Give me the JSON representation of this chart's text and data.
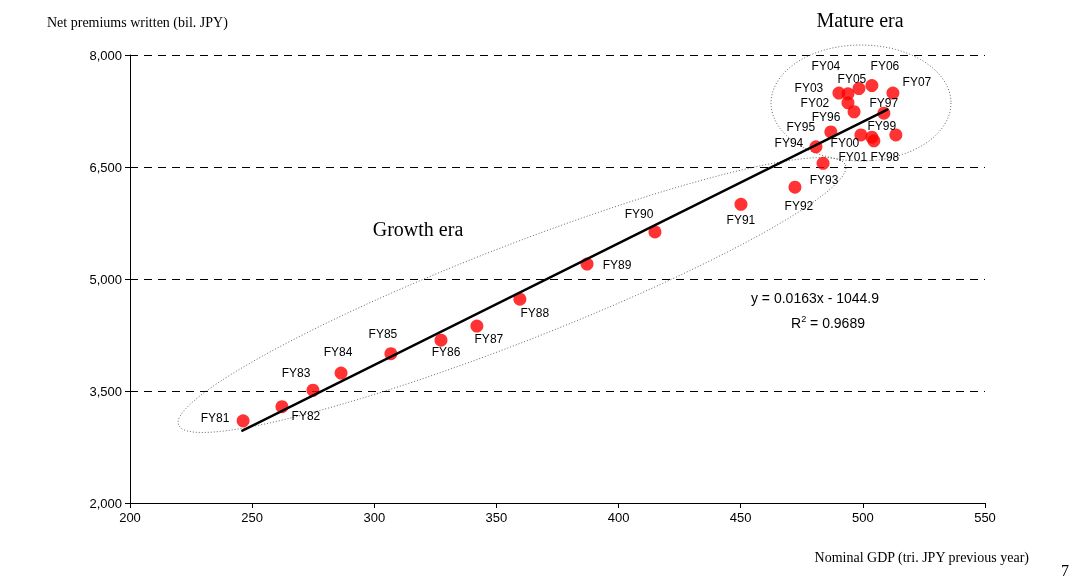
{
  "chart_data": {
    "type": "scatter",
    "xlabel": "Nominal GDP (tri. JPY previous year)",
    "ylabel": "Net premiums written (bil. JPY)",
    "xlim": [
      200,
      550
    ],
    "xticks": [
      200,
      250,
      300,
      350,
      400,
      450,
      500,
      550
    ],
    "ylim": [
      2000,
      8000
    ],
    "yticks": [
      {
        "value": 2000,
        "label": "2,000"
      },
      {
        "value": 3500,
        "label": "3,500"
      },
      {
        "value": 5000,
        "label": "5,000"
      },
      {
        "value": 6500,
        "label": "6,500"
      },
      {
        "value": 8000,
        "label": "8,000"
      }
    ],
    "grid": "y",
    "marker": "circle",
    "series": [
      {
        "color": "#ff0000",
        "x": [
          246.3,
          262.2,
          274.9,
          286.4,
          306.8,
          327.3,
          342.0,
          359.6,
          387.1,
          414.9,
          450.1,
          472.2,
          483.7,
          480.8,
          486.9,
          496.4,
          508.6,
          503.7,
          513.5,
          499.2,
          504.5,
          493.9,
          490.2,
          493.9,
          498.4,
          503.7,
          512.3
        ],
        "values": [
          3100,
          3290,
          3510,
          3740,
          4000,
          4180,
          4370,
          4730,
          5200,
          5630,
          6000,
          6230,
          6550,
          6770,
          6970,
          7240,
          7220,
          6900,
          6930,
          6930,
          6850,
          7360,
          7490,
          7480,
          7550,
          7590,
          7490
        ]
      },
      {
        "type": "line",
        "color": "#000000",
        "line_style": "solid",
        "marker": "none",
        "x": [
          246,
          510
        ],
        "values": [
          2970,
          7270
        ]
      }
    ],
    "annotations": [
      {
        "text": "FY81",
        "x": 246.3,
        "y": 3100
      },
      {
        "text": "FY82",
        "x": 262.2,
        "y": 3290
      },
      {
        "text": "FY83",
        "x": 274.9,
        "y": 3510
      },
      {
        "text": "FY84",
        "x": 286.4,
        "y": 3740
      },
      {
        "text": "FY85",
        "x": 306.8,
        "y": 4000
      },
      {
        "text": "FY86",
        "x": 327.3,
        "y": 4180
      },
      {
        "text": "FY87",
        "x": 342.0,
        "y": 4370
      },
      {
        "text": "FY88",
        "x": 359.6,
        "y": 4730
      },
      {
        "text": "FY89",
        "x": 387.1,
        "y": 5200
      },
      {
        "text": "FY90",
        "x": 414.9,
        "y": 5630
      },
      {
        "text": "FY91",
        "x": 450.1,
        "y": 6000
      },
      {
        "text": "FY92",
        "x": 472.2,
        "y": 6230
      },
      {
        "text": "FY93",
        "x": 483.7,
        "y": 6550
      },
      {
        "text": "FY94",
        "x": 480.8,
        "y": 6770
      },
      {
        "text": "FY95",
        "x": 486.9,
        "y": 6970
      },
      {
        "text": "FY96",
        "x": 496.4,
        "y": 7240
      },
      {
        "text": "FY97",
        "x": 508.6,
        "y": 7220
      },
      {
        "text": "FY98",
        "x": 503.7,
        "y": 6900
      },
      {
        "text": "FY99",
        "x": 513.5,
        "y": 6930
      },
      {
        "text": "FY00",
        "x": 499.2,
        "y": 6930
      },
      {
        "text": "FY01",
        "x": 504.5,
        "y": 6850
      },
      {
        "text": "FY02",
        "x": 493.9,
        "y": 7360
      },
      {
        "text": "FY03",
        "x": 490.2,
        "y": 7490
      },
      {
        "text": "FY04",
        "x": 493.9,
        "y": 7480
      },
      {
        "text": "FY05",
        "x": 498.4,
        "y": 7550
      },
      {
        "text": "FY06",
        "x": 503.7,
        "y": 7590
      },
      {
        "text": "FY07",
        "x": 512.3,
        "y": 7490
      },
      "Growth era",
      "Mature era",
      "y = 0.0163x - 1044.9",
      "R$^{2}$ = 0.9689",
      "7"
    ]
  }
}
